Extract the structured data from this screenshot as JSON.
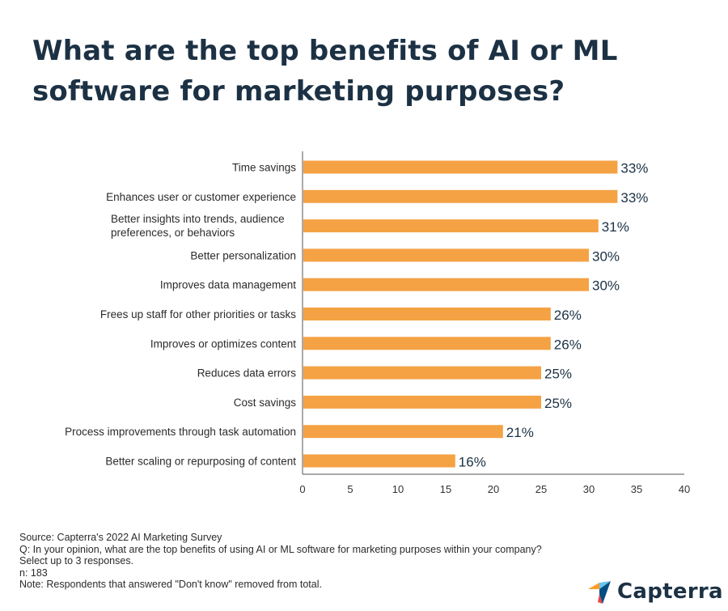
{
  "title": "What are the top benefits of AI or ML software for marketing purposes?",
  "chart_data": {
    "type": "bar",
    "orientation": "horizontal",
    "categories": [
      [
        "Time savings"
      ],
      [
        "Enhances user or customer experience"
      ],
      [
        "Better insights into trends, audience",
        "preferences, or behaviors"
      ],
      [
        "Better personalization"
      ],
      [
        "Improves data management"
      ],
      [
        "Frees up staff for other priorities or tasks"
      ],
      [
        "Improves or optimizes content"
      ],
      [
        "Reduces data errors"
      ],
      [
        "Cost savings"
      ],
      [
        "Process improvements through task automation"
      ],
      [
        "Better scaling or repurposing of content"
      ]
    ],
    "values": [
      33,
      33,
      31,
      30,
      30,
      26,
      26,
      25,
      25,
      21,
      16
    ],
    "value_labels": [
      "33%",
      "33%",
      "31%",
      "30%",
      "30%",
      "26%",
      "26%",
      "25%",
      "25%",
      "21%",
      "16%"
    ],
    "xlim": [
      0,
      40
    ],
    "x_ticks": [
      "0",
      "5",
      "10",
      "15",
      "20",
      "25",
      "30",
      "35",
      "40"
    ],
    "bar_color": "#f4a244",
    "grid": false
  },
  "notes": {
    "source": "Source: Capterra's 2022 AI Marketing Survey",
    "question_1": "Q: In your opinion, what are the top benefits of using AI or ML software for marketing purposes within your company?",
    "question_2": "Select up to 3 responses.",
    "n": "n: 183",
    "note": "Note: Respondents that answered \"Don't know\" removed from total."
  },
  "logo": {
    "text": "Capterra",
    "colors": [
      "#ff9d28",
      "#68c5ed",
      "#044d80",
      "#e54747"
    ]
  }
}
